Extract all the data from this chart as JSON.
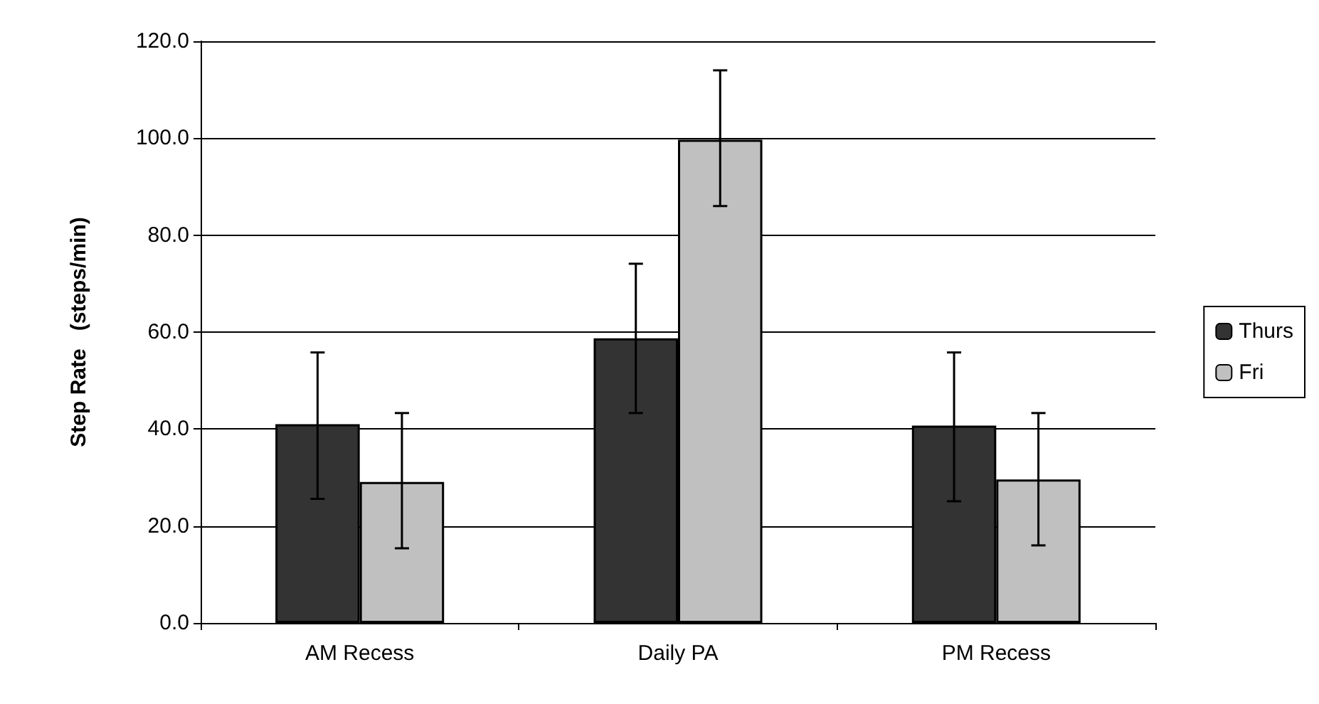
{
  "chart_data": {
    "type": "bar",
    "ylabel": "Step Rate   (steps/min)",
    "categories": [
      "AM Recess",
      "Daily PA",
      "PM Recess"
    ],
    "series": [
      {
        "name": "Thurs",
        "color": "#333333",
        "values": [
          41.0,
          58.7,
          40.7
        ],
        "errors": [
          [
            25.6,
            55.8
          ],
          [
            43.3,
            74.1
          ],
          [
            25.1,
            55.8
          ]
        ]
      },
      {
        "name": "Fri",
        "color": "#c0c0c0",
        "values": [
          29.1,
          99.7,
          29.6
        ],
        "errors": [
          [
            15.4,
            43.3
          ],
          [
            86.0,
            114.0
          ],
          [
            16.0,
            43.3
          ]
        ]
      }
    ],
    "ylim": [
      0,
      120
    ],
    "yticks": [
      {
        "value": 0,
        "label": "0.0"
      },
      {
        "value": 20,
        "label": "20.0"
      },
      {
        "value": 40,
        "label": "40.0"
      },
      {
        "value": 60,
        "label": "60.0"
      },
      {
        "value": 80,
        "label": "80.0"
      },
      {
        "value": 100,
        "label": "100.0"
      },
      {
        "value": 120,
        "label": "120.0"
      }
    ],
    "grid": "y",
    "legend": "right"
  }
}
